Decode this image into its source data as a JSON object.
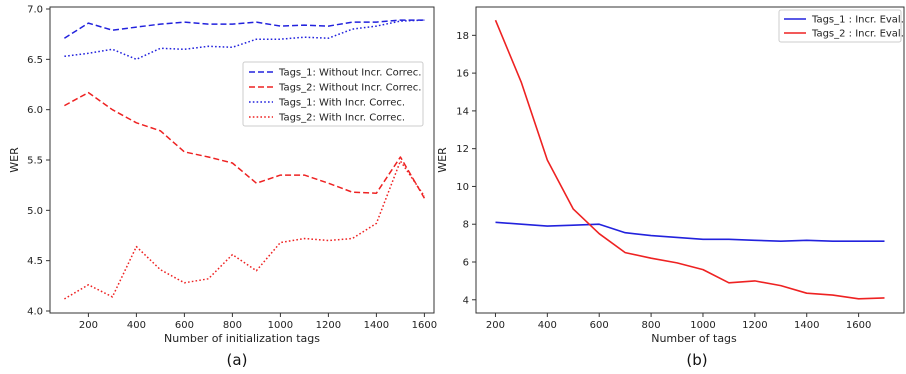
{
  "chart_data": [
    {
      "type": "line",
      "caption": "(a)",
      "title": "",
      "xlabel": "Number of initialization tags",
      "ylabel": "WER",
      "xlim": [
        40,
        1640
      ],
      "ylim": [
        3.98,
        7.02
      ],
      "xticks": [
        200,
        400,
        600,
        800,
        1000,
        1200,
        1400,
        1600
      ],
      "yticks": [
        4.0,
        4.5,
        5.0,
        5.5,
        6.0,
        6.5,
        7.0
      ],
      "ytick_labels": [
        "4.0",
        "4.5",
        "5.0",
        "5.5",
        "6.0",
        "6.5",
        "7.0"
      ],
      "grid": false,
      "legend_position": "center-right",
      "x": [
        100,
        200,
        300,
        400,
        500,
        600,
        700,
        800,
        900,
        1000,
        1100,
        1200,
        1300,
        1400,
        1500,
        1600
      ],
      "series": [
        {
          "name": "Tags_1: Without Incr. Correc.",
          "color": "#2222dd",
          "style": "dashed",
          "values": [
            6.71,
            6.86,
            6.79,
            6.82,
            6.85,
            6.87,
            6.85,
            6.85,
            6.87,
            6.83,
            6.84,
            6.83,
            6.87,
            6.87,
            6.89,
            6.89
          ]
        },
        {
          "name": "Tags_2: Without Incr. Correc.",
          "color": "#ee2222",
          "style": "dashed",
          "values": [
            6.04,
            6.17,
            6.0,
            5.87,
            5.79,
            5.58,
            5.53,
            5.47,
            5.27,
            5.35,
            5.35,
            5.27,
            5.18,
            5.17,
            5.53,
            5.12
          ]
        },
        {
          "name": "Tags_1: With Incr. Correc.",
          "color": "#2222dd",
          "style": "dotted",
          "values": [
            6.53,
            6.56,
            6.6,
            6.5,
            6.61,
            6.6,
            6.63,
            6.62,
            6.7,
            6.7,
            6.72,
            6.71,
            6.8,
            6.83,
            6.88,
            6.89
          ]
        },
        {
          "name": "Tags_2: With Incr. Correc.",
          "color": "#ee2222",
          "style": "dotted",
          "values": [
            4.12,
            4.26,
            4.14,
            4.64,
            4.41,
            4.28,
            4.32,
            4.56,
            4.4,
            4.68,
            4.72,
            4.7,
            4.72,
            4.87,
            5.49,
            5.14
          ]
        }
      ]
    },
    {
      "type": "line",
      "caption": "(b)",
      "title": "",
      "xlabel": "Number of tags",
      "ylabel": "WER",
      "xlim": [
        125,
        1775
      ],
      "ylim": [
        3.3,
        19.5
      ],
      "xticks": [
        200,
        400,
        600,
        800,
        1000,
        1200,
        1400,
        1600
      ],
      "yticks": [
        4,
        6,
        8,
        10,
        12,
        14,
        16,
        18
      ],
      "ytick_labels": [
        "4",
        "6",
        "8",
        "10",
        "12",
        "14",
        "16",
        "18"
      ],
      "grid": false,
      "legend_position": "top-right",
      "x": [
        200,
        300,
        400,
        500,
        600,
        700,
        800,
        900,
        1000,
        1100,
        1200,
        1300,
        1400,
        1500,
        1600,
        1700
      ],
      "series": [
        {
          "name": "Tags_1 : Incr. Eval.",
          "color": "#2222dd",
          "style": "solid",
          "values": [
            8.1,
            8.0,
            7.9,
            7.95,
            8.0,
            7.55,
            7.4,
            7.3,
            7.2,
            7.2,
            7.15,
            7.1,
            7.15,
            7.1,
            7.1,
            7.1
          ]
        },
        {
          "name": "Tags_2 : Incr. Eval.",
          "color": "#ee2222",
          "style": "solid",
          "values": [
            18.8,
            15.5,
            11.4,
            8.8,
            7.5,
            6.5,
            6.2,
            5.95,
            5.6,
            4.9,
            5.0,
            4.75,
            4.35,
            4.25,
            4.05,
            4.1
          ]
        }
      ]
    }
  ]
}
